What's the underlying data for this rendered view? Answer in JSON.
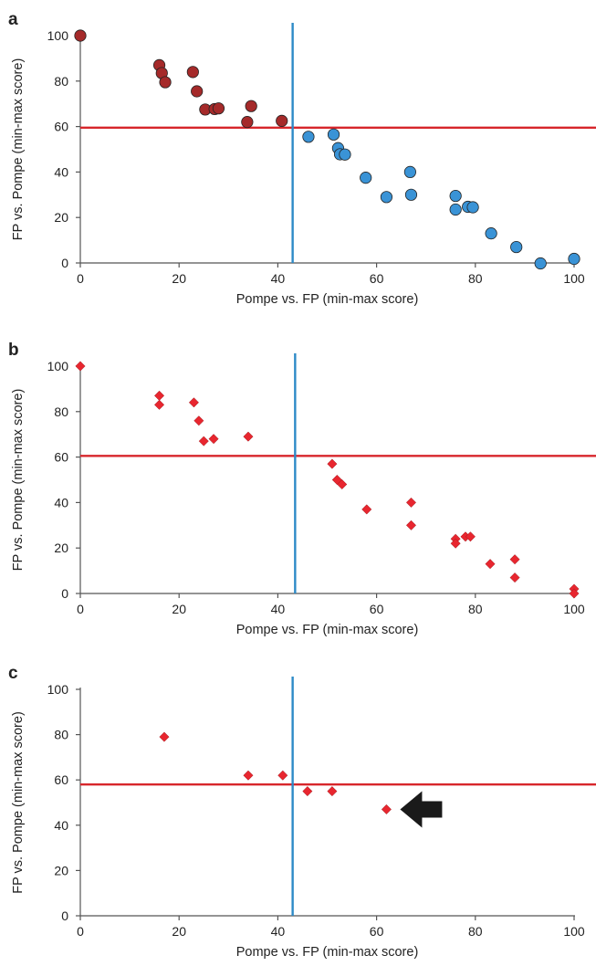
{
  "figure": {
    "colors": {
      "axis": "#555555",
      "h_threshold": "#d7262b",
      "v_threshold": "#2d8ac7",
      "dark_red": "#a52a2a",
      "blue": "#3a93d6",
      "diamond_red": "#e8262f",
      "arrow": "#1a1a1a"
    }
  },
  "chart_data": [
    {
      "panel_label": "a",
      "type": "scatter",
      "xlabel": "Pompe vs. FP (min-max score)",
      "ylabel": "FP vs. Pompe (min-max score)",
      "xlim": [
        0,
        100
      ],
      "ylim": [
        0,
        100
      ],
      "xticks": [
        0,
        20,
        40,
        60,
        80,
        100
      ],
      "yticks": [
        0,
        20,
        40,
        60,
        80,
        100
      ],
      "grid": false,
      "thresholds": {
        "y": 59.5,
        "x": 43
      },
      "series": [
        {
          "marker": "circle",
          "color": "#a52a2a",
          "points": [
            [
              0,
              100
            ],
            [
              16,
              87
            ],
            [
              16.5,
              83.5
            ],
            [
              17.2,
              79.5
            ],
            [
              22.8,
              84
            ],
            [
              23.6,
              75.5
            ],
            [
              25.3,
              67.5
            ],
            [
              27.2,
              67.7
            ],
            [
              28,
              68
            ],
            [
              33.8,
              62
            ],
            [
              34.6,
              69
            ],
            [
              40.8,
              62.5
            ]
          ]
        },
        {
          "marker": "circle",
          "color": "#3a93d6",
          "points": [
            [
              46.2,
              55.5
            ],
            [
              51.3,
              56.5
            ],
            [
              52.2,
              50.5
            ],
            [
              52.6,
              47.8
            ],
            [
              53.6,
              47.7
            ],
            [
              57.8,
              37.5
            ],
            [
              62,
              29
            ],
            [
              66.8,
              40
            ],
            [
              67,
              30
            ],
            [
              76,
              29.5
            ],
            [
              76,
              23.5
            ],
            [
              78.5,
              24.7
            ],
            [
              79.5,
              24.5
            ],
            [
              83.2,
              13
            ],
            [
              88.3,
              7
            ],
            [
              93.2,
              -0.2
            ],
            [
              100,
              1.8
            ]
          ]
        }
      ]
    },
    {
      "panel_label": "b",
      "type": "scatter",
      "xlabel": "Pompe vs. FP (min-max score)",
      "ylabel": "FP vs. Pompe (min-max score)",
      "xlim": [
        0,
        100
      ],
      "ylim": [
        0,
        100
      ],
      "xticks": [
        0,
        20,
        40,
        60,
        80,
        100
      ],
      "yticks": [
        0,
        20,
        40,
        60,
        80,
        100
      ],
      "grid": false,
      "thresholds": {
        "y": 60.5,
        "x": 43.5
      },
      "series": [
        {
          "marker": "diamond",
          "color": "#e8262f",
          "points": [
            [
              0,
              100
            ],
            [
              16,
              87
            ],
            [
              16,
              83
            ],
            [
              23,
              84
            ],
            [
              24,
              76
            ],
            [
              25,
              67
            ],
            [
              27,
              68
            ],
            [
              34,
              69
            ],
            [
              51,
              57
            ],
            [
              52,
              50
            ],
            [
              53,
              48
            ],
            [
              58,
              37
            ],
            [
              67,
              40
            ],
            [
              67,
              30
            ],
            [
              76,
              24
            ],
            [
              76,
              22
            ],
            [
              78,
              25
            ],
            [
              79,
              25
            ],
            [
              83,
              13
            ],
            [
              88,
              15
            ],
            [
              88,
              7
            ],
            [
              100,
              2
            ],
            [
              100,
              0
            ]
          ]
        }
      ]
    },
    {
      "panel_label": "c",
      "type": "scatter",
      "xlabel": "Pompe vs. FP (min-max score)",
      "ylabel": "FP vs. Pompe (min-max score)",
      "xlim": [
        0,
        100
      ],
      "ylim": [
        0,
        100
      ],
      "xticks": [
        0,
        20,
        40,
        60,
        80,
        100
      ],
      "yticks": [
        0,
        20,
        40,
        60,
        80,
        100
      ],
      "grid": false,
      "thresholds": {
        "y": 58,
        "x": 43
      },
      "series": [
        {
          "marker": "diamond",
          "color": "#e8262f",
          "points": [
            [
              17,
              79
            ],
            [
              34,
              62
            ],
            [
              41,
              62
            ],
            [
              46,
              55
            ],
            [
              51,
              55
            ],
            [
              62,
              47
            ]
          ]
        }
      ],
      "annotation": {
        "type": "arrow",
        "direction": "left",
        "points_to": [
          62,
          47
        ]
      }
    }
  ]
}
